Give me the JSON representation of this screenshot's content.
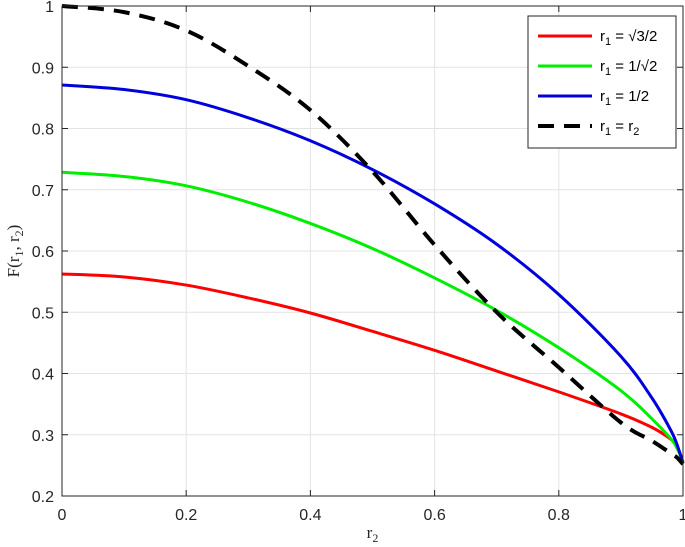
{
  "chart_data": {
    "type": "line",
    "title": "",
    "xlabel": "r",
    "xlabel_sub": "2",
    "ylabel": "F(r",
    "ylabel_parts": [
      "F(r",
      "1",
      ", r",
      "2",
      ")"
    ],
    "xlim": [
      0,
      1
    ],
    "ylim": [
      0.2,
      1
    ],
    "xticks": [
      0,
      0.2,
      0.4,
      0.6,
      0.8,
      1
    ],
    "xtick_labels": [
      "0",
      "0.2",
      "0.4",
      "0.6",
      "0.8",
      "1"
    ],
    "yticks": [
      0.2,
      0.3,
      0.4,
      0.5,
      0.6,
      0.7,
      0.8,
      0.9,
      1
    ],
    "ytick_labels": [
      "0.2",
      "0.3",
      "0.4",
      "0.5",
      "0.6",
      "0.7",
      "0.8",
      "0.9",
      "1"
    ],
    "grid": true,
    "legend_position": "top-right",
    "x": [
      0,
      0.1,
      0.2,
      0.3,
      0.4,
      0.5,
      0.6,
      0.7,
      0.8,
      0.9,
      0.95,
      0.98,
      0.99,
      1
    ],
    "series": [
      {
        "name": "r1 = √3/2",
        "legend_parts": [
          "r",
          "1",
          " = √3/2"
        ],
        "color": "#ff0000",
        "dash": "solid",
        "values": [
          0.5625,
          0.5576,
          0.5444,
          0.5234,
          0.4988,
          0.4688,
          0.4378,
          0.404,
          0.37,
          0.334,
          0.312,
          0.293,
          0.282,
          0.256
        ]
      },
      {
        "name": "r1 = 1/√2",
        "legend_parts": [
          "r",
          "1",
          " = 1/√2"
        ],
        "color": "#00ee00",
        "dash": "solid",
        "values": [
          0.7285,
          0.7217,
          0.7064,
          0.6796,
          0.645,
          0.6041,
          0.556,
          0.503,
          0.442,
          0.372,
          0.326,
          0.294,
          0.279,
          0.256
        ]
      },
      {
        "name": "r1 = 1/2",
        "legend_parts": [
          "r",
          "1",
          " = 1/2"
        ],
        "color": "#0000dd",
        "dash": "solid",
        "values": [
          0.871,
          0.8636,
          0.847,
          0.8175,
          0.78,
          0.733,
          0.677,
          0.611,
          0.529,
          0.428,
          0.36,
          0.308,
          0.285,
          0.254
        ]
      },
      {
        "name": "r1 = r2",
        "legend_parts": [
          "r",
          "1",
          " = r",
          "2"
        ],
        "color": "#000000",
        "dash": "dashed",
        "values": [
          1.0,
          0.99,
          0.96,
          0.902,
          0.83,
          0.73,
          0.61,
          0.5,
          0.41,
          0.32,
          0.29,
          0.27,
          0.263,
          0.252
        ]
      }
    ]
  }
}
